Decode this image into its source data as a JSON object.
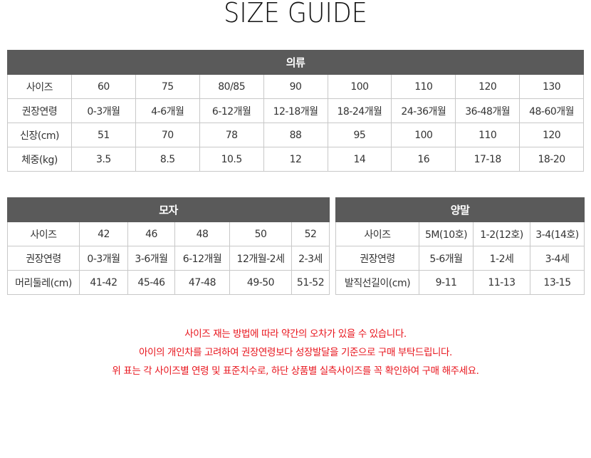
{
  "title": "SIZE GUIDE",
  "tables": {
    "clothes": {
      "header": "의류",
      "rows": [
        [
          "사이즈",
          "60",
          "75",
          "80/85",
          "90",
          "100",
          "110",
          "120",
          "130"
        ],
        [
          "권장연령",
          "0-3개월",
          "4-6개월",
          "6-12개월",
          "12-18개월",
          "18-24개월",
          "24-36개월",
          "36-48개월",
          "48-60개월"
        ],
        [
          "신장(cm)",
          "51",
          "70",
          "78",
          "88",
          "95",
          "100",
          "110",
          "120"
        ],
        [
          "체중(kg)",
          "3.5",
          "8.5",
          "10.5",
          "12",
          "14",
          "16",
          "17-18",
          "18-20"
        ]
      ]
    },
    "hat": {
      "header": "모자",
      "rows": [
        [
          "사이즈",
          "42",
          "46",
          "48",
          "50",
          "52"
        ],
        [
          "권장연령",
          "0-3개월",
          "3-6개월",
          "6-12개월",
          "12개월-2세",
          "2-3세"
        ],
        [
          "머리둘레(cm)",
          "41-42",
          "45-46",
          "47-48",
          "49-50",
          "51-52"
        ]
      ]
    },
    "socks": {
      "header": "양말",
      "rows": [
        [
          "사이즈",
          "5M(10호)",
          "1-2(12호)",
          "3-4(14호)"
        ],
        [
          "권장연령",
          "5-6개월",
          "1-2세",
          "3-4세"
        ],
        [
          "발직선길이(cm)",
          "9-11",
          "11-13",
          "13-15"
        ]
      ]
    }
  },
  "notice": [
    "사이즈 재는 방법에 따라 약간의 오차가 있을 수 있습니다.",
    "아이의 개인차를 고려하여 권장연령보다  성장발달을 기준으로 구매 부탁드립니다.",
    "위 표는  각 사이즈별 연령 및 표준치수로, 하단 상품별 실측사이즈를 꼭 확인하여 구매 해주세요."
  ],
  "colors": {
    "header_bg": "#5a5a5a",
    "notice": "#e8141c",
    "border": "#c8c8c8"
  }
}
